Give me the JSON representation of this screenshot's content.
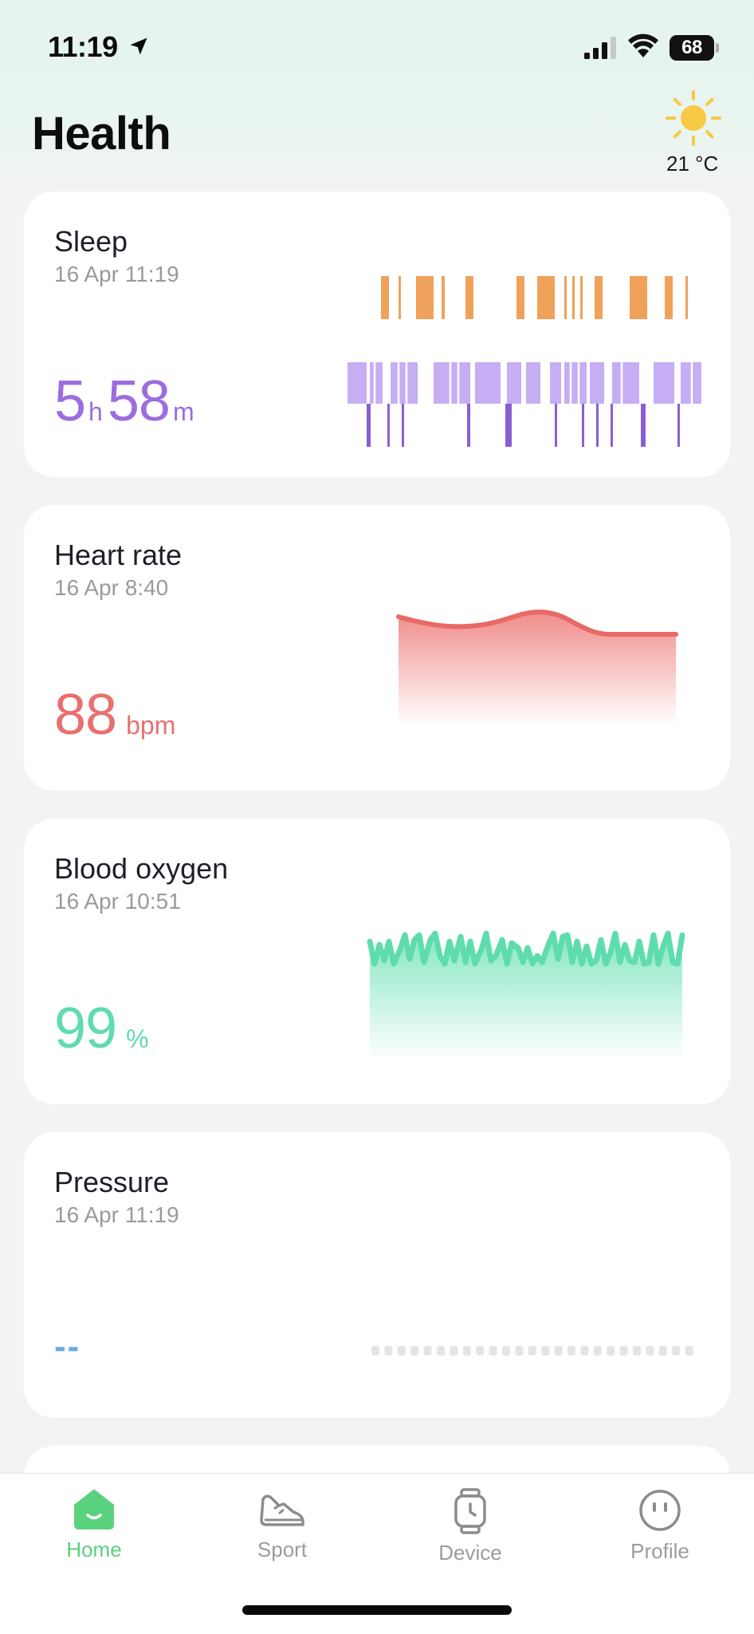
{
  "status_bar": {
    "time": "11:19",
    "battery": "68",
    "icons": [
      "location-arrow-icon",
      "signal-icon",
      "wifi-icon",
      "battery-icon"
    ]
  },
  "header": {
    "title": "Health",
    "weather": {
      "icon": "sun-icon",
      "temperature": "21 °C"
    }
  },
  "cards": {
    "sleep": {
      "title": "Sleep",
      "date": "16 Apr 11:19",
      "hours": "5",
      "hours_unit": "h",
      "minutes": "58",
      "minutes_unit": "m",
      "color": "#9b6de0"
    },
    "heart_rate": {
      "title": "Heart rate",
      "date": "16 Apr 8:40",
      "value": "88",
      "unit": "bpm",
      "color": "#e8706e"
    },
    "blood_oxygen": {
      "title": "Blood oxygen",
      "date": "16 Apr 10:51",
      "value": "99",
      "unit": "%",
      "color": "#5fdcae"
    },
    "pressure": {
      "title": "Pressure",
      "date": "16 Apr 11:19",
      "value": "--",
      "color": "#6aa8e6"
    }
  },
  "tabbar": {
    "items": [
      {
        "label": "Home",
        "icon": "home-icon",
        "active": true
      },
      {
        "label": "Sport",
        "icon": "sneaker-icon",
        "active": false
      },
      {
        "label": "Device",
        "icon": "watch-icon",
        "active": false
      },
      {
        "label": "Profile",
        "icon": "face-icon",
        "active": false
      }
    ]
  },
  "colors": {
    "accent": "#5ad17e",
    "sleep_awake": "#f0a25a",
    "sleep_light": "#c5aef3",
    "sleep_deep": "#8a5fd3"
  }
}
